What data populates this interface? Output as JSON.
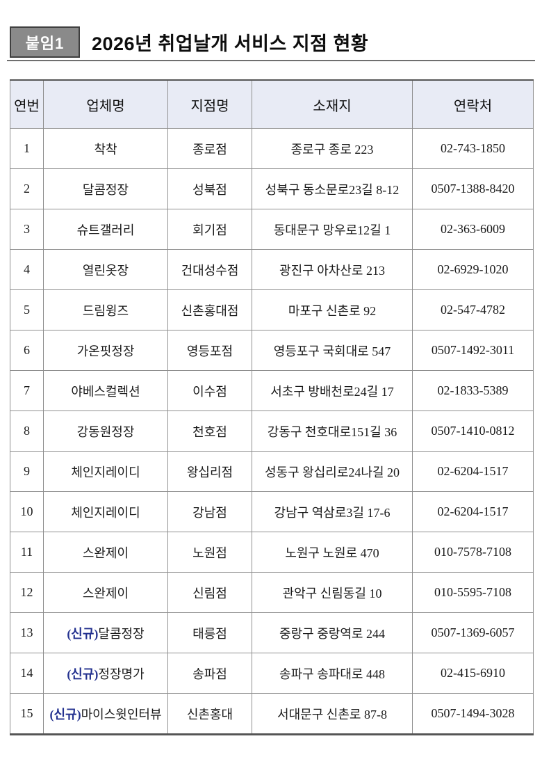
{
  "page": {
    "badge_label": "붙임1",
    "title": "2026년 취업날개 서비스 지점 현황"
  },
  "colors": {
    "badge_bg": "#8a8a8a",
    "badge_border": "#3f3f3f",
    "table_header_bg": "#e8ebf5",
    "new_prefix_text": "#23318f",
    "outer_border": "#555555",
    "inner_border": "#8f8f8f"
  },
  "table": {
    "columns": [
      "연번",
      "업체명",
      "지점명",
      "소재지",
      "연락처"
    ],
    "rows": [
      {
        "no": "1",
        "company_prefix": "",
        "company": "착착",
        "branch": "종로점",
        "address": "종로구 종로 223",
        "phone": "02-743-1850"
      },
      {
        "no": "2",
        "company_prefix": "",
        "company": "달콤정장",
        "branch": "성북점",
        "address": "성북구 동소문로23길 8-12",
        "phone": "0507-1388-8420"
      },
      {
        "no": "3",
        "company_prefix": "",
        "company": "슈트갤러리",
        "branch": "회기점",
        "address": "동대문구 망우로12길 1",
        "phone": "02-363-6009"
      },
      {
        "no": "4",
        "company_prefix": "",
        "company": "열린옷장",
        "branch": "건대성수점",
        "address": "광진구 아차산로 213",
        "phone": "02-6929-1020"
      },
      {
        "no": "5",
        "company_prefix": "",
        "company": "드림윙즈",
        "branch": "신촌홍대점",
        "address": "마포구 신촌로 92",
        "phone": "02-547-4782"
      },
      {
        "no": "6",
        "company_prefix": "",
        "company": "가온핏정장",
        "branch": "영등포점",
        "address": "영등포구 국회대로 547",
        "phone": "0507-1492-3011"
      },
      {
        "no": "7",
        "company_prefix": "",
        "company": "야베스컬렉션",
        "branch": "이수점",
        "address": "서초구 방배천로24길 17",
        "phone": "02-1833-5389"
      },
      {
        "no": "8",
        "company_prefix": "",
        "company": "강동원정장",
        "branch": "천호점",
        "address": "강동구 천호대로151길 36",
        "phone": "0507-1410-0812"
      },
      {
        "no": "9",
        "company_prefix": "",
        "company": "체인지레이디",
        "branch": "왕십리점",
        "address": "성동구 왕십리로24나길 20",
        "phone": "02-6204-1517"
      },
      {
        "no": "10",
        "company_prefix": "",
        "company": "체인지레이디",
        "branch": "강남점",
        "address": "강남구 역삼로3길 17-6",
        "phone": "02-6204-1517"
      },
      {
        "no": "11",
        "company_prefix": "",
        "company": "스완제이",
        "branch": "노원점",
        "address": "노원구 노원로 470",
        "phone": "010-7578-7108"
      },
      {
        "no": "12",
        "company_prefix": "",
        "company": "스완제이",
        "branch": "신림점",
        "address": "관악구 신림동길 10",
        "phone": "010-5595-7108"
      },
      {
        "no": "13",
        "company_prefix": "(신규)",
        "company": "달콤정장",
        "branch": "태릉점",
        "address": "중랑구 중랑역로 244",
        "phone": "0507-1369-6057"
      },
      {
        "no": "14",
        "company_prefix": "(신규)",
        "company": "정장명가",
        "branch": "송파점",
        "address": "송파구 송파대로 448",
        "phone": "02-415-6910"
      },
      {
        "no": "15",
        "company_prefix": "(신규)",
        "company": "마이스윗인터뷰",
        "branch": "신촌홍대",
        "address": "서대문구 신촌로 87-8",
        "phone": "0507-1494-3028"
      }
    ]
  }
}
